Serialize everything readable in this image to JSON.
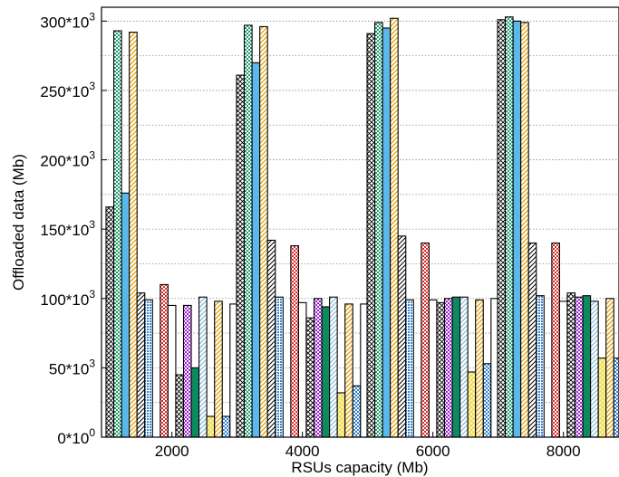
{
  "chart_data": {
    "type": "bar",
    "xlabel": "RSUs capacity (Mb)",
    "ylabel": "Offloaded data (Mb)",
    "ylim": [
      0,
      310000
    ],
    "yticks": [
      0,
      50000,
      100000,
      150000,
      200000,
      250000,
      300000
    ],
    "ytick_labels": [
      {
        "base": "0*10",
        "exp": "0"
      },
      {
        "base": "50*10",
        "exp": "3"
      },
      {
        "base": "100*10",
        "exp": "3"
      },
      {
        "base": "150*10",
        "exp": "3"
      },
      {
        "base": "200*10",
        "exp": "3"
      },
      {
        "base": "250*10",
        "exp": "3"
      },
      {
        "base": "300*10",
        "exp": "3"
      }
    ],
    "categories": [
      "2000",
      "4000",
      "6000",
      "8000"
    ],
    "grid": "horizontal",
    "legend": "none",
    "series": [
      {
        "pattern": "crosshatch-black",
        "values": [
          166000,
          261000,
          291000,
          301000
        ]
      },
      {
        "pattern": "checker-green",
        "values": [
          293000,
          297000,
          299000,
          303000
        ]
      },
      {
        "pattern": "solid-blue",
        "values": [
          176000,
          270000,
          295000,
          300000
        ]
      },
      {
        "pattern": "diagonal-orange",
        "values": [
          292000,
          296000,
          302000,
          299000
        ]
      },
      {
        "pattern": "diagonal-black",
        "values": [
          104000,
          142000,
          145000,
          140000
        ]
      },
      {
        "pattern": "dots-blue",
        "values": [
          99000,
          101000,
          99000,
          102000
        ]
      },
      {
        "pattern": "white",
        "values": [
          0,
          0,
          0,
          0
        ]
      },
      {
        "pattern": "checker-red",
        "values": [
          110000,
          138000,
          140000,
          140000
        ]
      },
      {
        "pattern": "white",
        "values": [
          95000,
          97000,
          99000,
          98000
        ]
      },
      {
        "pattern": "crosshatch-black",
        "values": [
          45000,
          86000,
          97000,
          104000
        ]
      },
      {
        "pattern": "checker-purple",
        "values": [
          95000,
          100000,
          100000,
          101000
        ]
      },
      {
        "pattern": "solid-green",
        "values": [
          50000,
          94000,
          101000,
          102000
        ]
      },
      {
        "pattern": "diagonal-lightblue",
        "values": [
          101000,
          101000,
          101000,
          98000
        ]
      },
      {
        "pattern": "crosshatch-yellow",
        "values": [
          15000,
          32000,
          47000,
          57000
        ]
      },
      {
        "pattern": "diagonal-orange",
        "values": [
          98000,
          96000,
          99000,
          100000
        ]
      },
      {
        "pattern": "checker-blue",
        "values": [
          15000,
          37000,
          53000,
          57000
        ]
      },
      {
        "pattern": "white",
        "values": [
          96000,
          96000,
          100000,
          102000
        ]
      }
    ]
  }
}
